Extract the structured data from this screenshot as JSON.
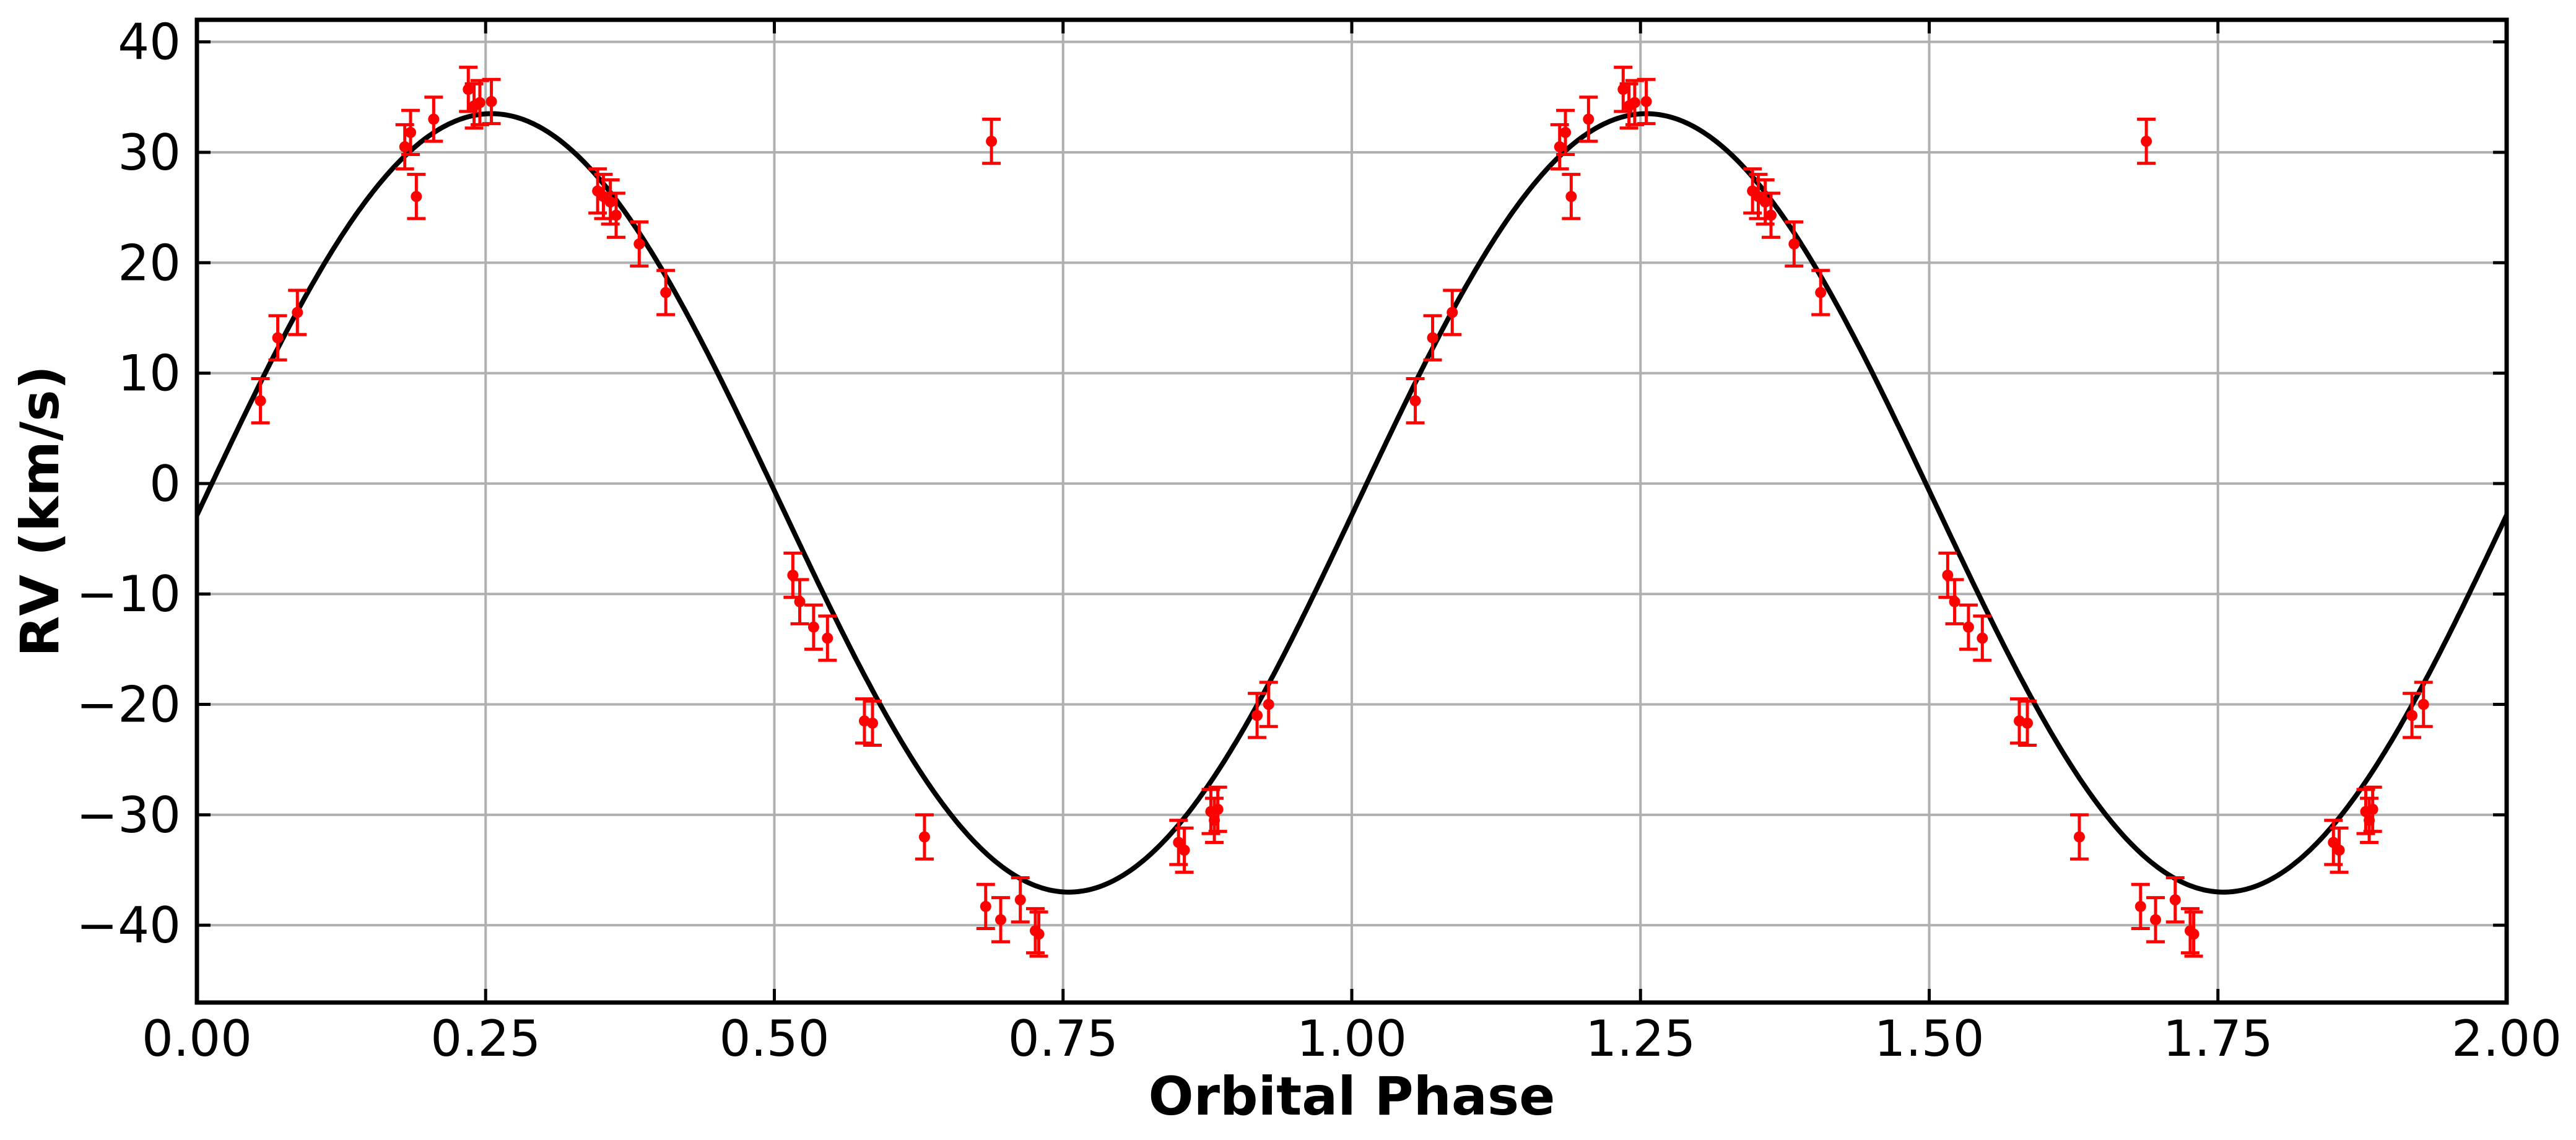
{
  "chart_data": {
    "type": "scatter",
    "title": "",
    "xlabel": "Orbital Phase",
    "ylabel": "RV (km/s)",
    "xlim": [
      0.0,
      2.0
    ],
    "ylim": [
      -47,
      42
    ],
    "x_ticks": [
      0.0,
      0.25,
      0.5,
      0.75,
      1.0,
      1.25,
      1.5,
      1.75,
      2.0
    ],
    "x_tick_labels": [
      "0.00",
      "0.25",
      "0.50",
      "0.75",
      "1.00",
      "1.25",
      "1.50",
      "1.75",
      "2.00"
    ],
    "y_ticks": [
      -40,
      -30,
      -20,
      -10,
      0,
      10,
      20,
      30,
      40
    ],
    "y_tick_labels": [
      "−40",
      "−30",
      "−20",
      "−10",
      "0",
      "10",
      "20",
      "30",
      "40"
    ],
    "grid": true,
    "legend": "none",
    "colors": {
      "points": "#ff0000",
      "model": "#000000",
      "grid": "#b0b0b0"
    },
    "model_curve": {
      "shape": "sinusoid",
      "max_rv": 33.5,
      "min_rv": -37.0,
      "phase_of_max": 0.255,
      "phase_of_min": 0.76,
      "rv_at_phase_0": -4.3,
      "rv_at_phase_2": -4.3
    },
    "series": [
      {
        "x": [
          0.055,
          0.07,
          0.087,
          0.18,
          0.185,
          0.19,
          0.205,
          0.235,
          0.24,
          0.245,
          0.255,
          0.347,
          0.352,
          0.358,
          0.363,
          0.383,
          0.406,
          0.516,
          0.522,
          0.534,
          0.546,
          0.578,
          0.585,
          0.63,
          0.683,
          0.688,
          0.696,
          0.713,
          0.726,
          0.729,
          0.85,
          0.855,
          0.878,
          0.881,
          0.884,
          0.918,
          0.928,
          1.055,
          1.07,
          1.087,
          1.18,
          1.185,
          1.19,
          1.205,
          1.235,
          1.24,
          1.245,
          1.255,
          1.347,
          1.352,
          1.358,
          1.363,
          1.383,
          1.406,
          1.516,
          1.522,
          1.534,
          1.546,
          1.578,
          1.585,
          1.63,
          1.683,
          1.688,
          1.696,
          1.713,
          1.726,
          1.729,
          1.85,
          1.855,
          1.878,
          1.881,
          1.884,
          1.918,
          1.928
        ],
        "y": [
          7.5,
          13.2,
          15.5,
          30.5,
          31.8,
          26.0,
          33.0,
          35.7,
          34.2,
          34.5,
          34.6,
          26.5,
          26.0,
          25.5,
          24.3,
          21.7,
          17.3,
          -8.3,
          -10.7,
          -13.0,
          -14.0,
          -21.5,
          -21.7,
          -32.0,
          -38.3,
          31.0,
          -39.5,
          -37.7,
          -40.5,
          -40.8,
          -32.5,
          -33.2,
          -29.7,
          -30.5,
          -29.5,
          -21.0,
          -20.0,
          7.5,
          13.2,
          15.5,
          30.5,
          31.8,
          26.0,
          33.0,
          35.7,
          34.2,
          34.5,
          34.6,
          26.5,
          26.0,
          25.5,
          24.3,
          21.7,
          17.3,
          -8.3,
          -10.7,
          -13.0,
          -14.0,
          -21.5,
          -21.7,
          -32.0,
          -38.3,
          31.0,
          -39.5,
          -37.7,
          -40.5,
          -40.8,
          -32.5,
          -33.2,
          -29.7,
          -30.5,
          -29.5,
          -21.0,
          -20.0
        ],
        "yerr": 2.0
      }
    ]
  }
}
